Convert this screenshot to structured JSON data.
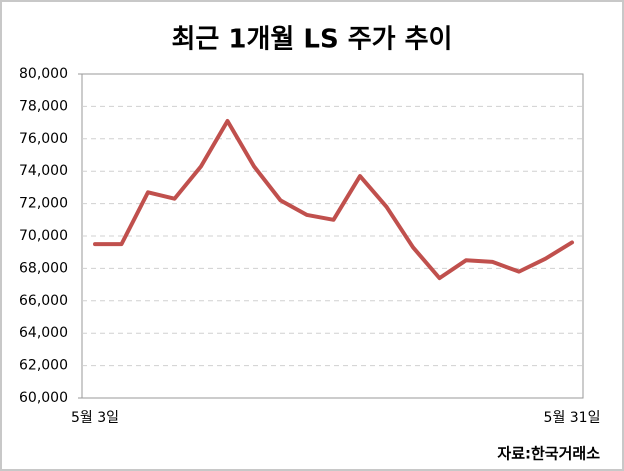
{
  "chart_data": {
    "type": "line",
    "title": "최근 1개월 LS 주가 추이",
    "categories": [
      "5월 3일",
      null,
      null,
      null,
      null,
      null,
      null,
      null,
      null,
      null,
      null,
      null,
      null,
      null,
      null,
      null,
      null,
      null,
      "5월 31일"
    ],
    "series": [
      {
        "name": "LS",
        "color": "#c0504d",
        "values": [
          69500,
          69500,
          72700,
          72300,
          74300,
          77100,
          74300,
          72200,
          71300,
          71000,
          73700,
          71800,
          69300,
          67400,
          68500,
          68400,
          67800,
          68600,
          69600
        ]
      }
    ],
    "ylim": [
      60000,
      80000
    ],
    "yticks": [
      {
        "value": 60000,
        "label": "60,000"
      },
      {
        "value": 62000,
        "label": "62,000"
      },
      {
        "value": 64000,
        "label": "64,000"
      },
      {
        "value": 66000,
        "label": "66,000"
      },
      {
        "value": 68000,
        "label": "68,000"
      },
      {
        "value": 70000,
        "label": "70,000"
      },
      {
        "value": 72000,
        "label": "72,000"
      },
      {
        "value": 74000,
        "label": "74,000"
      },
      {
        "value": 76000,
        "label": "76,000"
      },
      {
        "value": 78000,
        "label": "78,000"
      },
      {
        "value": 80000,
        "label": "80,000"
      }
    ],
    "grid": true,
    "source": "자료:한국거래소"
  }
}
